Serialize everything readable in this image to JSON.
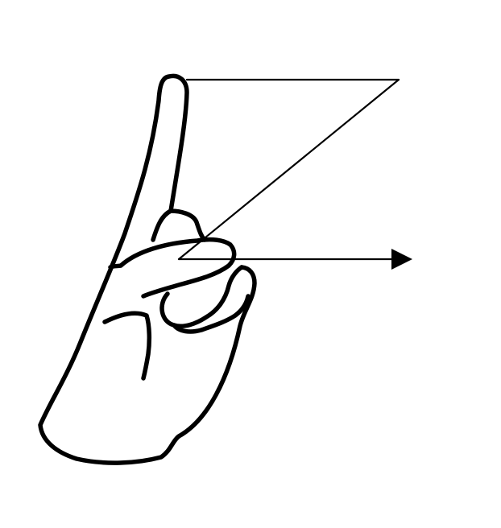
{
  "figure": {
    "subject": "hand-sign-letter-z-icon",
    "colors": {
      "background": "#ffffff",
      "line": "#000000"
    },
    "motion_path": {
      "shape": "Z",
      "ends_with_arrow": true,
      "arrow_direction": "right"
    }
  }
}
